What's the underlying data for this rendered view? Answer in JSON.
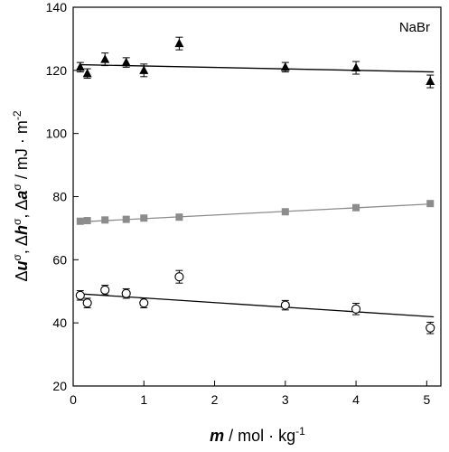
{
  "chart_data": {
    "type": "scatter",
    "annotation": "NaBr",
    "xlabel": {
      "symbol": "m",
      "unit": " / mol · kg",
      "unit_sup": "-1"
    },
    "ylabel": {
      "delta": "Δ",
      "u": "u",
      "h": "h",
      "a": "a",
      "sigma": "σ",
      "sep": ", ",
      "unit": " / mJ · m",
      "unit_sup": "-2"
    },
    "xlim": [
      0,
      5.2
    ],
    "ylim": [
      20,
      140
    ],
    "xticks": [
      0,
      1,
      2,
      3,
      4,
      5
    ],
    "yticks": [
      20,
      40,
      60,
      80,
      100,
      120,
      140
    ],
    "grid": false,
    "series": [
      {
        "marker": "triangle",
        "color": "#000000",
        "x": [
          0.1,
          0.2,
          0.45,
          0.75,
          1.0,
          1.5,
          3.0,
          4.0,
          5.05
        ],
        "y": [
          121.0,
          119.0,
          123.5,
          122.5,
          120.0,
          128.5,
          121.0,
          120.8,
          116.5
        ],
        "err": [
          1.5,
          1.5,
          2.0,
          1.5,
          2.0,
          2.0,
          1.5,
          2.0,
          2.0
        ],
        "fit": {
          "x": [
            0.1,
            5.1
          ],
          "y": [
            121.8,
            119.5
          ],
          "color": "#000000"
        }
      },
      {
        "marker": "square",
        "color": "#8c8c8c",
        "x": [
          0.1,
          0.2,
          0.45,
          0.75,
          1.0,
          1.5,
          3.0,
          4.0,
          5.05
        ],
        "y": [
          72.2,
          72.4,
          72.6,
          72.8,
          73.2,
          73.5,
          75.2,
          76.5,
          77.8
        ],
        "err": [
          0,
          0,
          0,
          0,
          0,
          0,
          0,
          0,
          0
        ],
        "fit": {
          "x": [
            0.1,
            5.1
          ],
          "y": [
            72.0,
            77.7
          ],
          "color": "#8c8c8c"
        }
      },
      {
        "marker": "circle",
        "color": "#000000",
        "x": [
          0.1,
          0.2,
          0.45,
          0.75,
          1.0,
          1.5,
          3.0,
          4.0,
          5.05
        ],
        "y": [
          48.7,
          46.3,
          50.4,
          49.3,
          46.3,
          54.6,
          45.6,
          44.4,
          38.4
        ],
        "err": [
          1.5,
          1.5,
          1.5,
          1.5,
          1.5,
          2.0,
          1.5,
          1.8,
          1.8
        ],
        "fit": {
          "x": [
            0.1,
            5.1
          ],
          "y": [
            49.2,
            41.9
          ],
          "color": "#000000"
        }
      }
    ]
  }
}
